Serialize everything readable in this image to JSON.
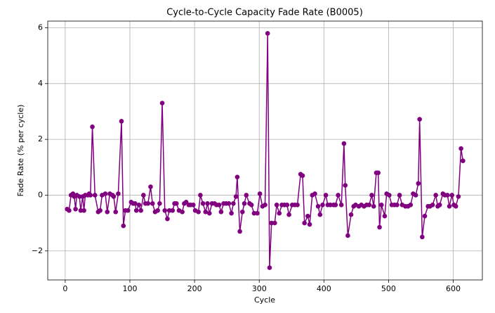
{
  "chart_data": {
    "type": "line",
    "title": "Cycle-to-Cycle Capacity Fade Rate (B0005)",
    "x_label": "Cycle",
    "y_label": "Fade Rate (% per cycle)",
    "xlim": [
      -27,
      645
    ],
    "ylim": [
      -3.04,
      6.24
    ],
    "xticks": [
      0,
      100,
      200,
      300,
      400,
      500,
      600
    ],
    "yticks": [
      {
        "value": -2,
        "label": "−2"
      },
      0,
      2,
      4,
      6
    ],
    "grid": true,
    "series": [
      {
        "color": "#800080",
        "x": [
          3,
          6,
          9,
          12,
          14,
          16,
          18,
          22,
          24,
          27,
          29,
          31,
          35,
          37,
          39,
          42,
          46,
          51,
          54,
          57,
          62,
          65,
          69,
          73,
          75,
          78,
          82,
          87,
          90,
          93,
          97,
          102,
          105,
          108,
          110,
          114,
          117,
          121,
          124,
          128,
          132,
          135,
          139,
          143,
          146,
          150,
          154,
          158,
          161,
          166,
          169,
          172,
          176,
          181,
          184,
          187,
          191,
          194,
          198,
          201,
          206,
          209,
          213,
          217,
          220,
          223,
          227,
          231,
          234,
          238,
          241,
          245,
          249,
          253,
          257,
          260,
          264,
          266,
          270,
          274,
          277,
          280,
          285,
          288,
          292,
          297,
          301,
          305,
          309,
          313,
          316,
          319,
          324,
          327,
          331,
          335,
          339,
          343,
          346,
          351,
          355,
          359,
          364,
          367,
          370,
          375,
          378,
          382,
          386,
          391,
          394,
          398,
          403,
          406,
          410,
          415,
          418,
          422,
          427,
          431,
          433,
          437,
          442,
          446,
          449,
          454,
          458,
          462,
          466,
          470,
          474,
          477,
          481,
          484,
          486,
          489,
          494,
          497,
          501,
          505,
          509,
          513,
          517,
          521,
          526,
          530,
          534,
          538,
          542,
          546,
          548,
          552,
          556,
          561,
          564,
          568,
          573,
          576,
          579,
          584,
          587,
          591,
          594,
          598,
          601,
          604,
          608,
          612,
          615
        ],
        "values": [
          -0.5,
          -0.55,
          0.0,
          0.05,
          -0.05,
          -0.5,
          0.0,
          -0.05,
          -0.55,
          -0.05,
          -0.55,
          0.0,
          0.0,
          0.05,
          0.0,
          2.45,
          0.0,
          -0.6,
          -0.55,
          0.0,
          0.05,
          -0.6,
          0.05,
          0.0,
          -0.05,
          -0.6,
          0.05,
          2.65,
          -1.1,
          -0.55,
          -0.55,
          -0.25,
          -0.3,
          -0.3,
          -0.55,
          -0.35,
          -0.55,
          0.0,
          -0.3,
          -0.3,
          0.3,
          -0.3,
          -0.6,
          -0.55,
          -0.3,
          3.3,
          -0.55,
          -0.85,
          -0.55,
          -0.55,
          -0.3,
          -0.3,
          -0.55,
          -0.6,
          -0.3,
          -0.25,
          -0.35,
          -0.35,
          -0.35,
          -0.55,
          -0.6,
          0.0,
          -0.3,
          -0.6,
          -0.3,
          -0.65,
          -0.3,
          -0.3,
          -0.35,
          -0.35,
          -0.6,
          -0.3,
          -0.3,
          -0.3,
          -0.65,
          -0.3,
          -0.05,
          0.65,
          -1.3,
          -0.6,
          -0.3,
          0.0,
          -0.3,
          -0.35,
          -0.65,
          -0.65,
          0.05,
          -0.4,
          -0.35,
          5.8,
          -2.6,
          -1.0,
          -1.0,
          -0.35,
          -0.65,
          -0.35,
          -0.35,
          -0.35,
          -0.7,
          -0.35,
          -0.35,
          -0.35,
          0.75,
          0.7,
          -1.0,
          -0.75,
          -1.05,
          0.0,
          0.05,
          -0.4,
          -0.7,
          -0.35,
          0.0,
          -0.35,
          -0.35,
          -0.35,
          -0.35,
          0.0,
          -0.35,
          1.85,
          0.35,
          -1.45,
          -0.7,
          -0.4,
          -0.35,
          -0.4,
          -0.35,
          -0.4,
          -0.35,
          -0.35,
          0.0,
          -0.4,
          0.8,
          0.8,
          -1.15,
          -0.35,
          -0.75,
          0.05,
          0.0,
          -0.35,
          -0.35,
          -0.35,
          0.0,
          -0.35,
          -0.4,
          -0.4,
          -0.35,
          0.05,
          0.0,
          0.42,
          2.72,
          -1.5,
          -0.75,
          -0.4,
          -0.4,
          -0.35,
          0.0,
          -0.4,
          -0.35,
          0.05,
          0.0,
          0.0,
          -0.4,
          0.0,
          -0.35,
          -0.4,
          -0.05,
          1.67,
          1.23
        ]
      }
    ]
  }
}
